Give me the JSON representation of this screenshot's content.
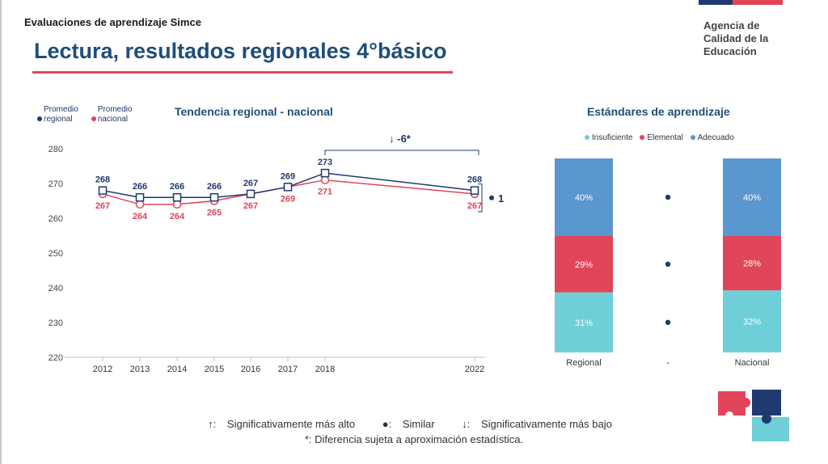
{
  "header": {
    "kicker": "Evaluaciones de aprendizaje Simce",
    "title": "Lectura, resultados regionales 4°básico",
    "logo_text": "Agencia de Calidad de la Educación"
  },
  "colors": {
    "regional": "#1f3a6e",
    "nacional": "#e0455a",
    "insuficiente": "#6fcfd8",
    "elemental": "#e0455a",
    "adecuado": "#5a96cf"
  },
  "legend_trend": {
    "regional": "Promedio regional",
    "nacional": "Promedio nacional"
  },
  "legend_standards": {
    "insuficiente": "Insuficiente",
    "elemental": "Elemental",
    "adecuado": "Adecuado"
  },
  "chart_data": [
    {
      "type": "line",
      "title": "Tendencia regional - nacional",
      "x": [
        "2012",
        "2013",
        "2014",
        "2015",
        "2016",
        "2017",
        "2018",
        "2022"
      ],
      "ylim": [
        220,
        280
      ],
      "yticks": [
        220,
        230,
        240,
        250,
        260,
        270,
        280
      ],
      "series": [
        {
          "name": "Promedio regional",
          "values": [
            268,
            266,
            266,
            266,
            267,
            269,
            273,
            268
          ]
        },
        {
          "name": "Promedio nacional",
          "values": [
            267,
            264,
            264,
            265,
            267,
            269,
            271,
            267
          ]
        }
      ],
      "annotations": {
        "trend_change": "-6*",
        "gap_2022": "1"
      }
    },
    {
      "type": "bar",
      "title": "Estándares de aprendizaje",
      "categories": [
        "Regional",
        "-",
        "Nacional"
      ],
      "series": [
        {
          "name": "Insuficiente",
          "values": [
            31,
            null,
            32
          ],
          "labels": [
            "31%",
            "",
            "32%"
          ]
        },
        {
          "name": "Elemental",
          "values": [
            29,
            null,
            28
          ],
          "labels": [
            "29%",
            "",
            "28%"
          ]
        },
        {
          "name": "Adecuado",
          "values": [
            40,
            null,
            40
          ],
          "labels": [
            "40%",
            "",
            "40%"
          ]
        }
      ]
    }
  ],
  "footnotes": {
    "up": "Significativamente más alto",
    "similar": "Similar",
    "down": "Significativamente más bajo",
    "approx": "*: Diferencia sujeta a aproximación estadística."
  }
}
